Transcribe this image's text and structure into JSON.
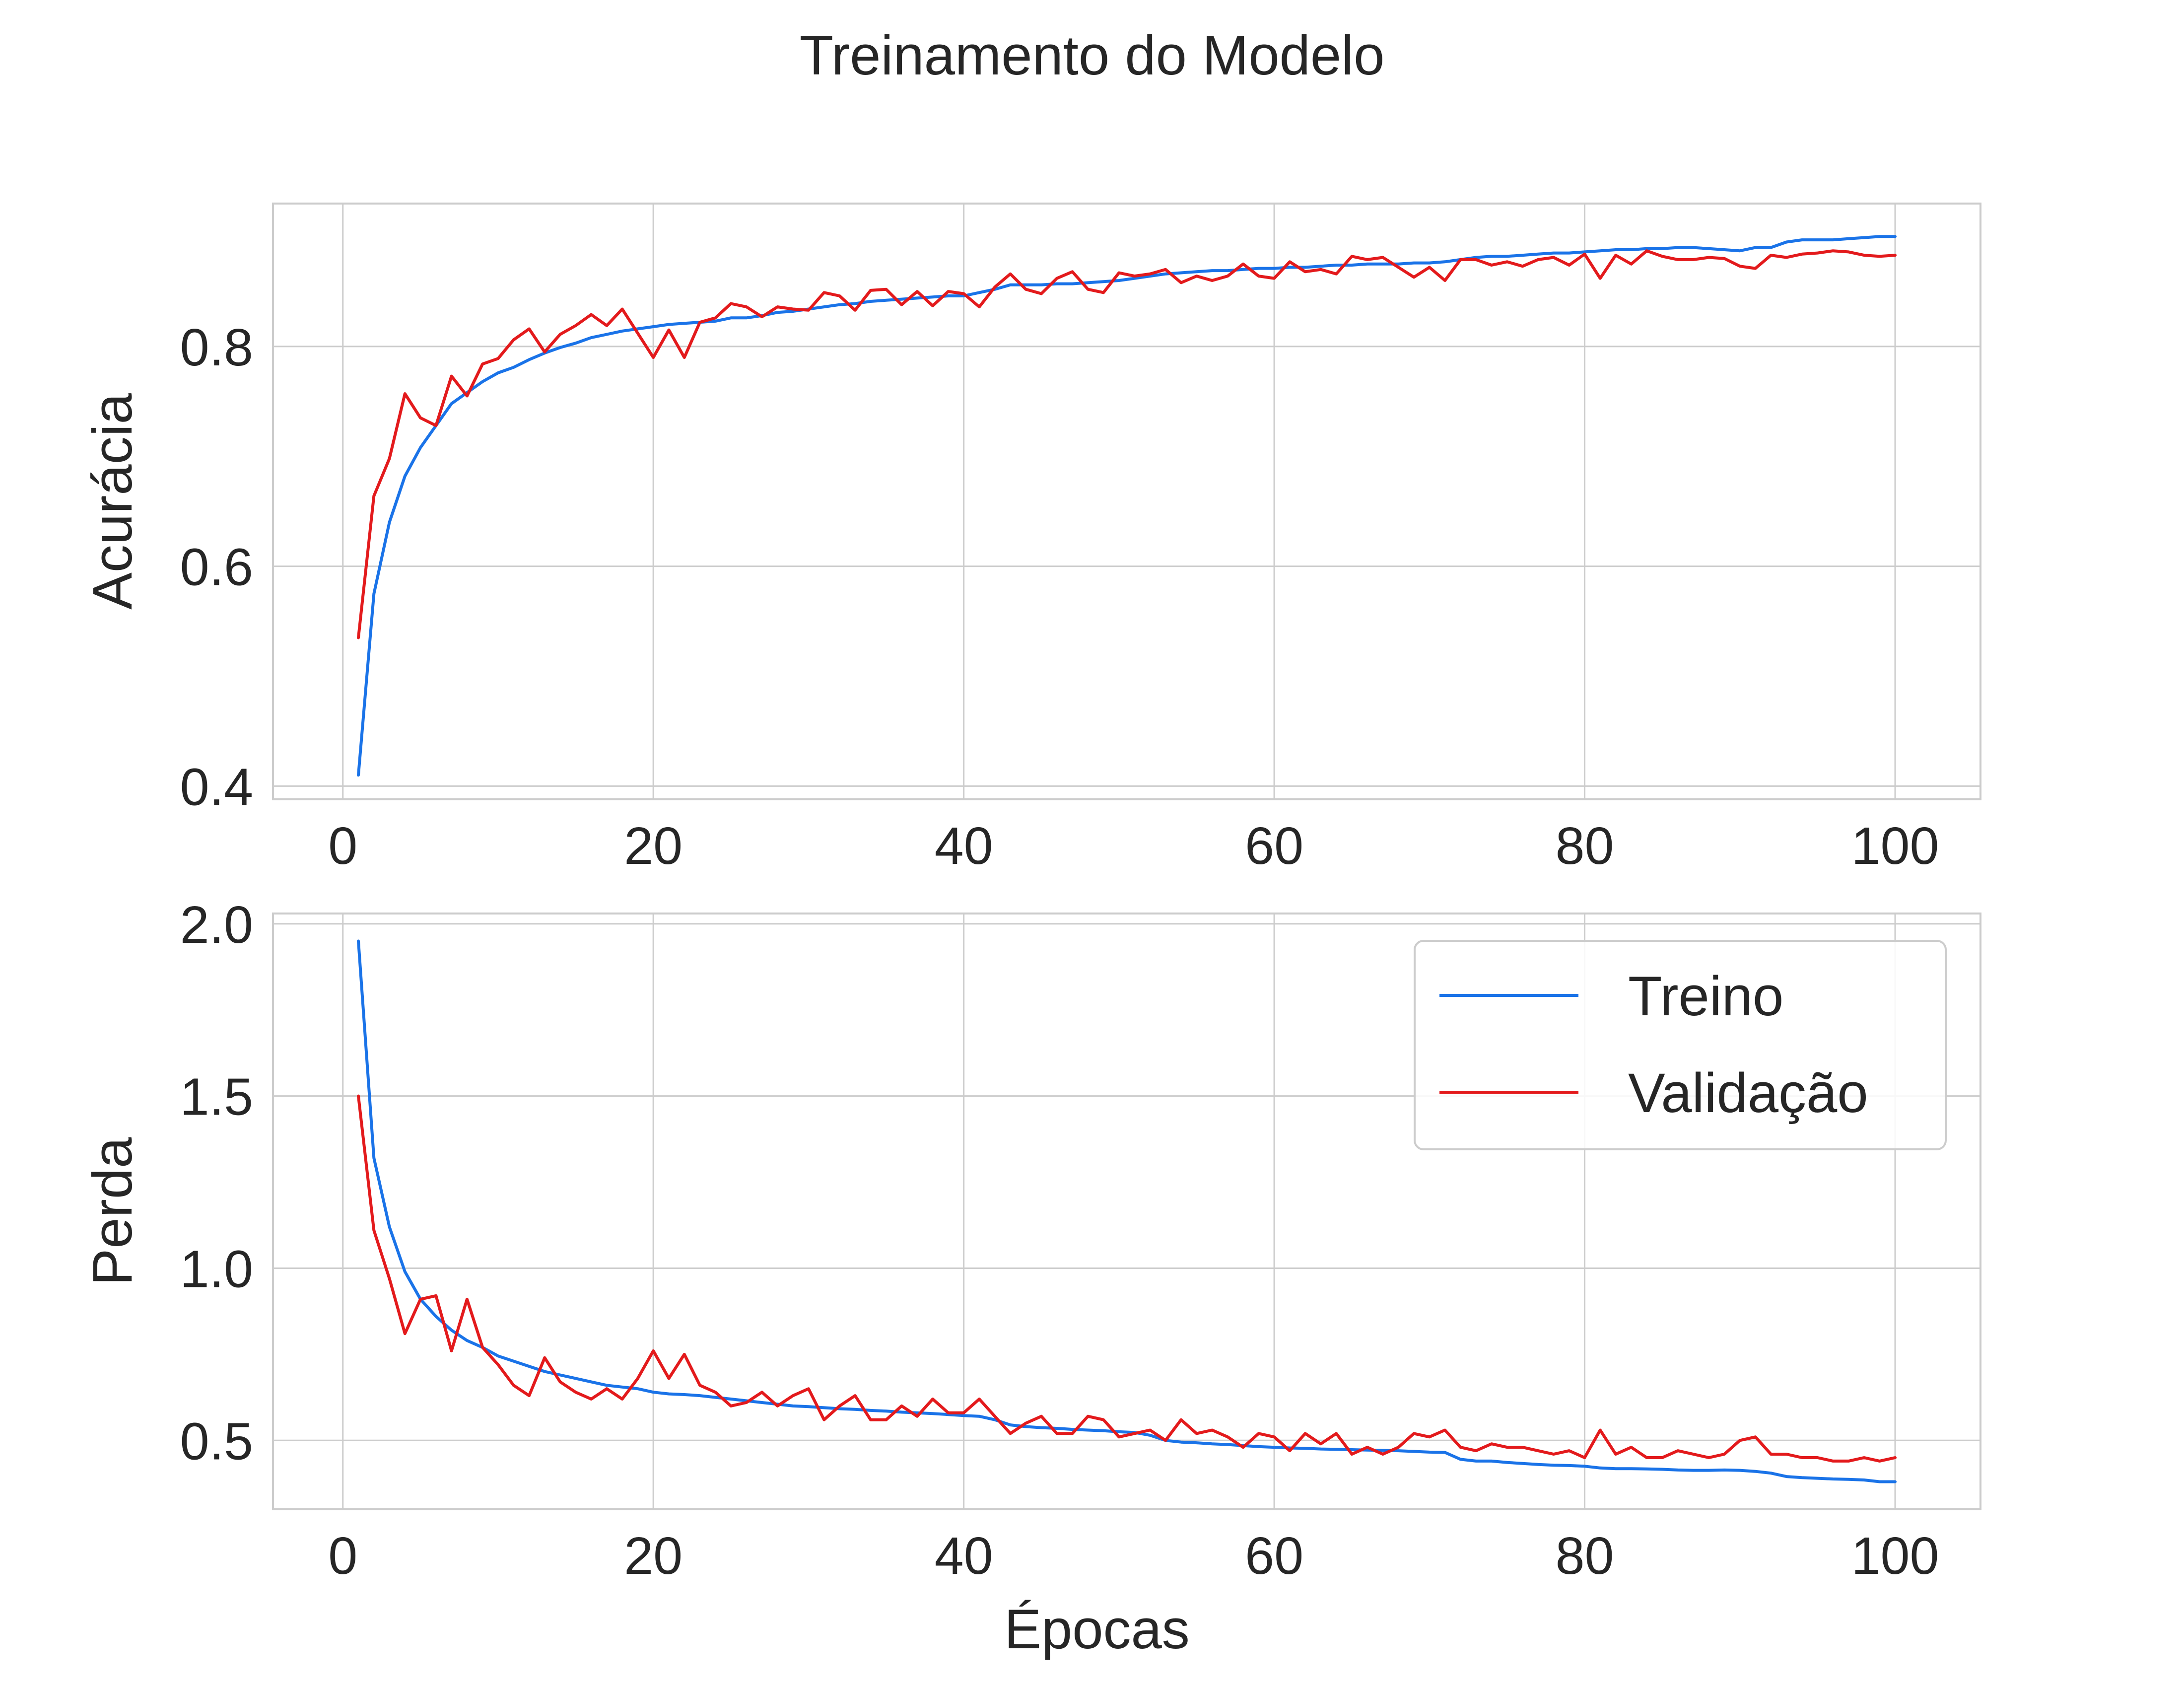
{
  "figure": {
    "suptitle": "Treinamento do Modelo"
  },
  "chart_data": [
    {
      "type": "line",
      "panel": "top",
      "title": "",
      "xlabel": "",
      "ylabel": "Acurácia",
      "xlim": [
        -4.5,
        105.5
      ],
      "ylim": [
        0.388,
        0.93
      ],
      "xticks": [
        0,
        20,
        40,
        60,
        80,
        100
      ],
      "xtick_labels": [
        "0",
        "20",
        "40",
        "60",
        "80",
        "100"
      ],
      "yticks": [
        0.4,
        0.6,
        0.8
      ],
      "ytick_labels": [
        "0.4",
        "0.6",
        "0.8"
      ],
      "grid": true,
      "legend": null,
      "series": [
        {
          "name": "Treino",
          "color": "#1a73e8",
          "x": [
            1,
            2,
            3,
            4,
            5,
            6,
            7,
            8,
            9,
            10,
            11,
            12,
            13,
            14,
            15,
            16,
            17,
            18,
            19,
            20,
            21,
            22,
            23,
            24,
            25,
            26,
            27,
            28,
            29,
            30,
            31,
            32,
            33,
            34,
            35,
            36,
            37,
            38,
            39,
            40,
            41,
            42,
            43,
            44,
            45,
            46,
            47,
            48,
            49,
            50,
            51,
            52,
            53,
            54,
            55,
            56,
            57,
            58,
            59,
            60,
            61,
            62,
            63,
            64,
            65,
            66,
            67,
            68,
            69,
            70,
            71,
            72,
            73,
            74,
            75,
            76,
            77,
            78,
            79,
            80,
            81,
            82,
            83,
            84,
            85,
            86,
            87,
            88,
            89,
            90,
            91,
            92,
            93,
            94,
            95,
            96,
            97,
            98,
            99,
            100
          ],
          "y": [
            0.41,
            0.575,
            0.64,
            0.682,
            0.708,
            0.728,
            0.748,
            0.758,
            0.768,
            0.776,
            0.781,
            0.788,
            0.794,
            0.799,
            0.803,
            0.808,
            0.811,
            0.814,
            0.816,
            0.818,
            0.82,
            0.821,
            0.822,
            0.823,
            0.826,
            0.826,
            0.828,
            0.831,
            0.832,
            0.834,
            0.836,
            0.838,
            0.839,
            0.841,
            0.842,
            0.843,
            0.844,
            0.845,
            0.846,
            0.846,
            0.849,
            0.852,
            0.856,
            0.856,
            0.856,
            0.857,
            0.857,
            0.858,
            0.859,
            0.86,
            0.862,
            0.864,
            0.866,
            0.867,
            0.868,
            0.869,
            0.869,
            0.87,
            0.871,
            0.871,
            0.872,
            0.872,
            0.873,
            0.874,
            0.874,
            0.875,
            0.875,
            0.875,
            0.876,
            0.876,
            0.877,
            0.879,
            0.881,
            0.882,
            0.882,
            0.883,
            0.884,
            0.885,
            0.885,
            0.886,
            0.887,
            0.888,
            0.888,
            0.889,
            0.889,
            0.89,
            0.89,
            0.889,
            0.888,
            0.887,
            0.89,
            0.89,
            0.895,
            0.897,
            0.897,
            0.897,
            0.898,
            0.899,
            0.9,
            0.9
          ]
        },
        {
          "name": "Validação",
          "color": "#e31a1c",
          "x": [
            1,
            2,
            3,
            4,
            5,
            6,
            7,
            8,
            9,
            10,
            11,
            12,
            13,
            14,
            15,
            16,
            17,
            18,
            19,
            20,
            21,
            22,
            23,
            24,
            25,
            26,
            27,
            28,
            29,
            30,
            31,
            32,
            33,
            34,
            35,
            36,
            37,
            38,
            39,
            40,
            41,
            42,
            43,
            44,
            45,
            46,
            47,
            48,
            49,
            50,
            51,
            52,
            53,
            54,
            55,
            56,
            57,
            58,
            59,
            60,
            61,
            62,
            63,
            64,
            65,
            66,
            67,
            68,
            69,
            70,
            71,
            72,
            73,
            74,
            75,
            76,
            77,
            78,
            79,
            80,
            81,
            82,
            83,
            84,
            85,
            86,
            87,
            88,
            89,
            90,
            91,
            92,
            93,
            94,
            95,
            96,
            97,
            98,
            99,
            100
          ],
          "y": [
            0.535,
            0.664,
            0.698,
            0.757,
            0.735,
            0.728,
            0.773,
            0.755,
            0.784,
            0.789,
            0.806,
            0.816,
            0.795,
            0.811,
            0.819,
            0.829,
            0.819,
            0.834,
            0.812,
            0.79,
            0.815,
            0.79,
            0.822,
            0.826,
            0.839,
            0.836,
            0.827,
            0.836,
            0.834,
            0.833,
            0.849,
            0.846,
            0.833,
            0.851,
            0.852,
            0.838,
            0.85,
            0.837,
            0.85,
            0.848,
            0.836,
            0.854,
            0.866,
            0.852,
            0.848,
            0.862,
            0.868,
            0.852,
            0.849,
            0.867,
            0.864,
            0.866,
            0.87,
            0.858,
            0.864,
            0.86,
            0.864,
            0.875,
            0.864,
            0.862,
            0.877,
            0.868,
            0.87,
            0.866,
            0.882,
            0.879,
            0.881,
            0.872,
            0.863,
            0.872,
            0.86,
            0.879,
            0.879,
            0.874,
            0.877,
            0.873,
            0.879,
            0.881,
            0.874,
            0.884,
            0.862,
            0.883,
            0.875,
            0.887,
            0.882,
            0.879,
            0.879,
            0.881,
            0.88,
            0.873,
            0.871,
            0.883,
            0.881,
            0.884,
            0.885,
            0.887,
            0.886,
            0.883,
            0.882,
            0.883
          ]
        }
      ]
    },
    {
      "type": "line",
      "panel": "bottom",
      "title": "",
      "xlabel": "Épocas",
      "ylabel": "Perda",
      "xlim": [
        -4.5,
        105.5
      ],
      "ylim": [
        0.3,
        2.03
      ],
      "xticks": [
        0,
        20,
        40,
        60,
        80,
        100
      ],
      "xtick_labels": [
        "0",
        "20",
        "40",
        "60",
        "80",
        "100"
      ],
      "yticks": [
        0.5,
        1.0,
        1.5,
        2.0
      ],
      "ytick_labels": [
        "0.5",
        "1.0",
        "1.5",
        "2.0"
      ],
      "grid": true,
      "legend": "top-right",
      "series": [
        {
          "name": "Treino",
          "color": "#1a73e8",
          "x": [
            1,
            2,
            3,
            4,
            5,
            6,
            7,
            8,
            9,
            10,
            11,
            12,
            13,
            14,
            15,
            16,
            17,
            18,
            19,
            20,
            21,
            22,
            23,
            24,
            25,
            26,
            27,
            28,
            29,
            30,
            31,
            32,
            33,
            34,
            35,
            36,
            37,
            38,
            39,
            40,
            41,
            42,
            43,
            44,
            45,
            46,
            47,
            48,
            49,
            50,
            51,
            52,
            53,
            54,
            55,
            56,
            57,
            58,
            59,
            60,
            61,
            62,
            63,
            64,
            65,
            66,
            67,
            68,
            69,
            70,
            71,
            72,
            73,
            74,
            75,
            76,
            77,
            78,
            79,
            80,
            81,
            82,
            83,
            84,
            85,
            86,
            87,
            88,
            89,
            90,
            91,
            92,
            93,
            94,
            95,
            96,
            97,
            98,
            99,
            100
          ],
          "y": [
            1.95,
            1.32,
            1.12,
            0.99,
            0.91,
            0.86,
            0.82,
            0.79,
            0.77,
            0.745,
            0.73,
            0.715,
            0.7,
            0.69,
            0.68,
            0.67,
            0.66,
            0.655,
            0.65,
            0.64,
            0.635,
            0.633,
            0.63,
            0.625,
            0.62,
            0.615,
            0.61,
            0.605,
            0.6,
            0.598,
            0.595,
            0.592,
            0.59,
            0.587,
            0.585,
            0.582,
            0.58,
            0.578,
            0.575,
            0.572,
            0.57,
            0.56,
            0.545,
            0.54,
            0.537,
            0.535,
            0.532,
            0.53,
            0.528,
            0.525,
            0.523,
            0.515,
            0.5,
            0.495,
            0.493,
            0.49,
            0.488,
            0.485,
            0.482,
            0.48,
            0.478,
            0.477,
            0.475,
            0.474,
            0.473,
            0.472,
            0.471,
            0.47,
            0.468,
            0.466,
            0.465,
            0.445,
            0.44,
            0.44,
            0.436,
            0.433,
            0.43,
            0.428,
            0.427,
            0.425,
            0.42,
            0.418,
            0.418,
            0.417,
            0.416,
            0.414,
            0.413,
            0.413,
            0.414,
            0.413,
            0.41,
            0.405,
            0.395,
            0.392,
            0.39,
            0.388,
            0.387,
            0.385,
            0.38,
            0.38
          ]
        },
        {
          "name": "Validação",
          "color": "#e31a1c",
          "x": [
            1,
            2,
            3,
            4,
            5,
            6,
            7,
            8,
            9,
            10,
            11,
            12,
            13,
            14,
            15,
            16,
            17,
            18,
            19,
            20,
            21,
            22,
            23,
            24,
            25,
            26,
            27,
            28,
            29,
            30,
            31,
            32,
            33,
            34,
            35,
            36,
            37,
            38,
            39,
            40,
            41,
            42,
            43,
            44,
            45,
            46,
            47,
            48,
            49,
            50,
            51,
            52,
            53,
            54,
            55,
            56,
            57,
            58,
            59,
            60,
            61,
            62,
            63,
            64,
            65,
            66,
            67,
            68,
            69,
            70,
            71,
            72,
            73,
            74,
            75,
            76,
            77,
            78,
            79,
            80,
            81,
            82,
            83,
            84,
            85,
            86,
            87,
            88,
            89,
            90,
            91,
            92,
            93,
            94,
            95,
            96,
            97,
            98,
            99,
            100
          ],
          "y": [
            1.5,
            1.11,
            0.97,
            0.81,
            0.91,
            0.92,
            0.76,
            0.91,
            0.77,
            0.72,
            0.66,
            0.63,
            0.74,
            0.67,
            0.64,
            0.62,
            0.65,
            0.62,
            0.68,
            0.76,
            0.68,
            0.75,
            0.66,
            0.64,
            0.6,
            0.61,
            0.64,
            0.6,
            0.63,
            0.65,
            0.56,
            0.6,
            0.63,
            0.56,
            0.56,
            0.6,
            0.57,
            0.62,
            0.58,
            0.58,
            0.62,
            0.57,
            0.52,
            0.55,
            0.57,
            0.52,
            0.52,
            0.57,
            0.56,
            0.51,
            0.52,
            0.53,
            0.5,
            0.56,
            0.52,
            0.53,
            0.51,
            0.48,
            0.52,
            0.51,
            0.47,
            0.52,
            0.49,
            0.52,
            0.46,
            0.48,
            0.46,
            0.48,
            0.52,
            0.51,
            0.53,
            0.48,
            0.47,
            0.49,
            0.48,
            0.48,
            0.47,
            0.46,
            0.47,
            0.45,
            0.53,
            0.46,
            0.48,
            0.45,
            0.45,
            0.47,
            0.46,
            0.45,
            0.46,
            0.5,
            0.51,
            0.46,
            0.46,
            0.45,
            0.45,
            0.44,
            0.44,
            0.45,
            0.44,
            0.45
          ]
        }
      ]
    }
  ]
}
